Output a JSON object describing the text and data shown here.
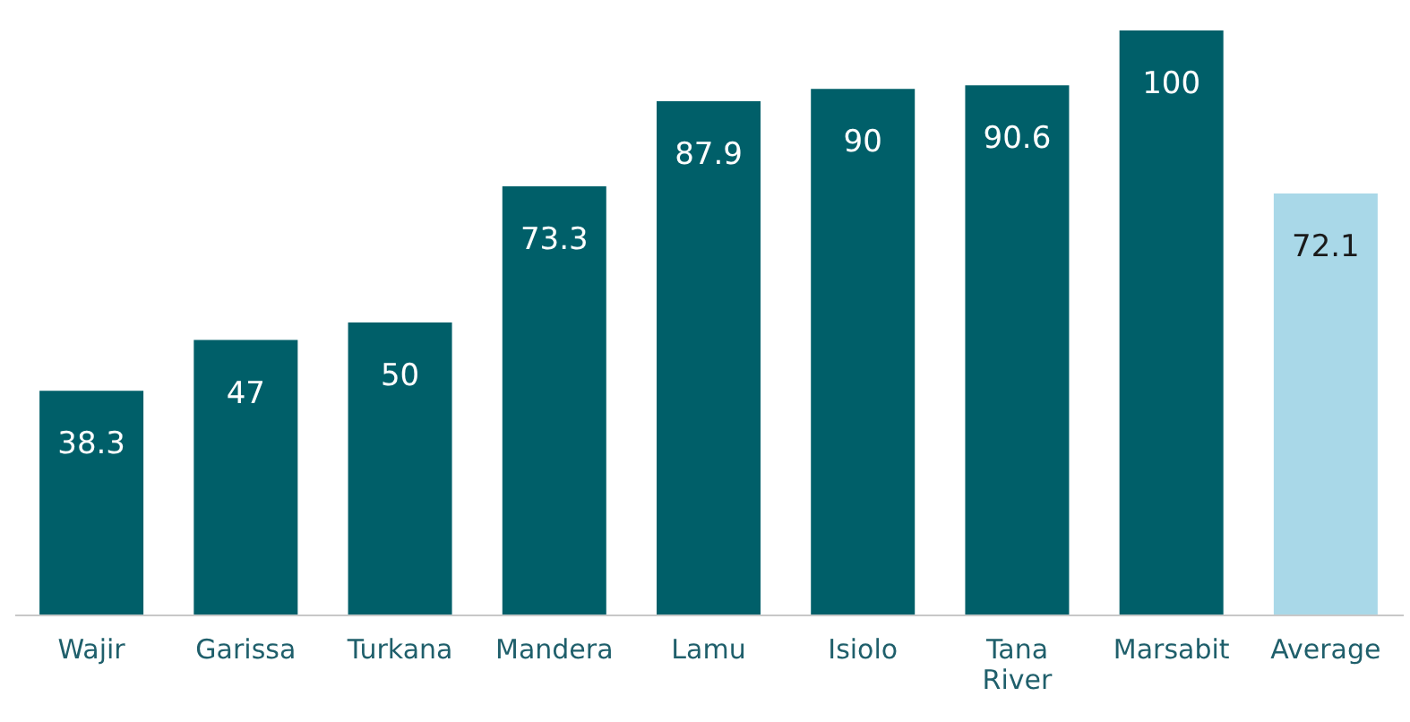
{
  "chart_data": {
    "type": "bar",
    "categories": [
      "Wajir",
      "Garissa",
      "Turkana",
      "Mandera",
      "Lamu",
      "Isiolo",
      "Tana River",
      "Marsabit",
      "Average"
    ],
    "values": [
      38.3,
      47,
      50,
      73.3,
      87.9,
      90,
      90.6,
      100,
      72.1
    ],
    "colors": [
      "#005f69",
      "#005f69",
      "#005f69",
      "#005f69",
      "#005f69",
      "#005f69",
      "#005f69",
      "#005f69",
      "#a9d8e8"
    ],
    "data_labels": true
  }
}
